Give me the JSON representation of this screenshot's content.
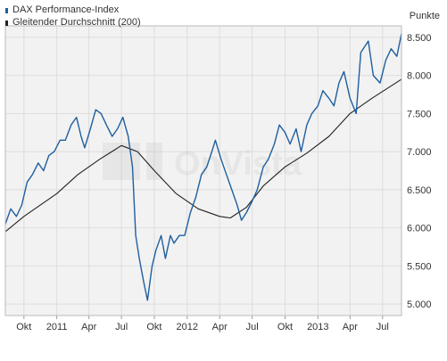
{
  "chart_data": {
    "type": "line",
    "title": "",
    "xlabel": "",
    "ylabel": "Punkte",
    "ylim": [
      4850,
      8650
    ],
    "y_ticks": [
      5000,
      5500,
      6000,
      6500,
      7000,
      7500,
      8000,
      8500
    ],
    "y_tick_labels": [
      "5.000",
      "5.500",
      "6.000",
      "6.500",
      "7.000",
      "7.500",
      "8.000",
      "8.500"
    ],
    "x_range": [
      "2010-08-10",
      "2013-08-23"
    ],
    "x_ticks": [
      {
        "date": "2010-10-01",
        "label": "Okt"
      },
      {
        "date": "2011-01-01",
        "label": "2011"
      },
      {
        "date": "2011-04-01",
        "label": "Apr"
      },
      {
        "date": "2011-07-01",
        "label": "Jul"
      },
      {
        "date": "2011-10-01",
        "label": "Okt"
      },
      {
        "date": "2012-01-01",
        "label": "2012"
      },
      {
        "date": "2012-04-01",
        "label": "Apr"
      },
      {
        "date": "2012-07-01",
        "label": "Jul"
      },
      {
        "date": "2012-10-01",
        "label": "Okt"
      },
      {
        "date": "2013-01-01",
        "label": "2013"
      },
      {
        "date": "2013-04-01",
        "label": "Apr"
      },
      {
        "date": "2013-07-01",
        "label": "Jul"
      }
    ],
    "grid": true,
    "legend_position": "top-left",
    "series": [
      {
        "name": "DAX Performance-Index",
        "color": "#1f5f9f",
        "x": [
          "2010-08-10",
          "2010-08-25",
          "2010-09-10",
          "2010-09-25",
          "2010-10-10",
          "2010-10-25",
          "2010-11-10",
          "2010-11-25",
          "2010-12-10",
          "2010-12-25",
          "2011-01-10",
          "2011-01-25",
          "2011-02-10",
          "2011-02-25",
          "2011-03-10",
          "2011-03-20",
          "2011-04-05",
          "2011-04-20",
          "2011-05-05",
          "2011-05-20",
          "2011-06-05",
          "2011-06-20",
          "2011-07-05",
          "2011-07-20",
          "2011-08-01",
          "2011-08-10",
          "2011-08-20",
          "2011-09-01",
          "2011-09-12",
          "2011-09-25",
          "2011-10-05",
          "2011-10-20",
          "2011-11-01",
          "2011-11-15",
          "2011-11-25",
          "2011-12-10",
          "2011-12-25",
          "2012-01-10",
          "2012-01-25",
          "2012-02-10",
          "2012-02-25",
          "2012-03-10",
          "2012-03-20",
          "2012-04-05",
          "2012-04-20",
          "2012-05-05",
          "2012-05-20",
          "2012-06-01",
          "2012-06-15",
          "2012-07-01",
          "2012-07-15",
          "2012-08-01",
          "2012-08-15",
          "2012-09-01",
          "2012-09-15",
          "2012-10-01",
          "2012-10-15",
          "2012-11-01",
          "2012-11-15",
          "2012-12-01",
          "2012-12-15",
          "2013-01-01",
          "2013-01-15",
          "2013-02-01",
          "2013-02-15",
          "2013-03-01",
          "2013-03-15",
          "2013-04-01",
          "2013-04-18",
          "2013-05-01",
          "2013-05-22",
          "2013-06-05",
          "2013-06-24",
          "2013-07-10",
          "2013-07-25",
          "2013-08-10",
          "2013-08-23"
        ],
        "values": [
          6050,
          6250,
          6150,
          6300,
          6600,
          6700,
          6850,
          6750,
          6950,
          7000,
          7150,
          7150,
          7350,
          7450,
          7200,
          7050,
          7300,
          7550,
          7500,
          7350,
          7200,
          7300,
          7450,
          7200,
          6800,
          5900,
          5600,
          5300,
          5050,
          5500,
          5700,
          5900,
          5600,
          5900,
          5800,
          5900,
          5900,
          6200,
          6400,
          6700,
          6800,
          7000,
          7150,
          6900,
          6700,
          6500,
          6300,
          6100,
          6200,
          6350,
          6500,
          6800,
          6900,
          7100,
          7350,
          7250,
          7100,
          7300,
          7000,
          7350,
          7500,
          7600,
          7800,
          7700,
          7600,
          7900,
          8050,
          7700,
          7500,
          8300,
          8450,
          8000,
          7900,
          8200,
          8350,
          8250,
          8550
        ]
      },
      {
        "name": "Gleitender Durchschnitt (200)",
        "color": "#222222",
        "x": [
          "2010-08-10",
          "2010-10-01",
          "2011-01-01",
          "2011-03-01",
          "2011-05-01",
          "2011-07-01",
          "2011-08-15",
          "2011-10-01",
          "2011-12-01",
          "2012-02-01",
          "2012-04-01",
          "2012-05-01",
          "2012-06-15",
          "2012-08-01",
          "2012-10-01",
          "2012-12-01",
          "2013-02-01",
          "2013-04-01",
          "2013-06-01",
          "2013-08-23"
        ],
        "values": [
          5950,
          6150,
          6450,
          6700,
          6900,
          7080,
          7000,
          6750,
          6450,
          6250,
          6150,
          6130,
          6270,
          6550,
          6800,
          6980,
          7200,
          7500,
          7700,
          7950
        ]
      }
    ]
  }
}
